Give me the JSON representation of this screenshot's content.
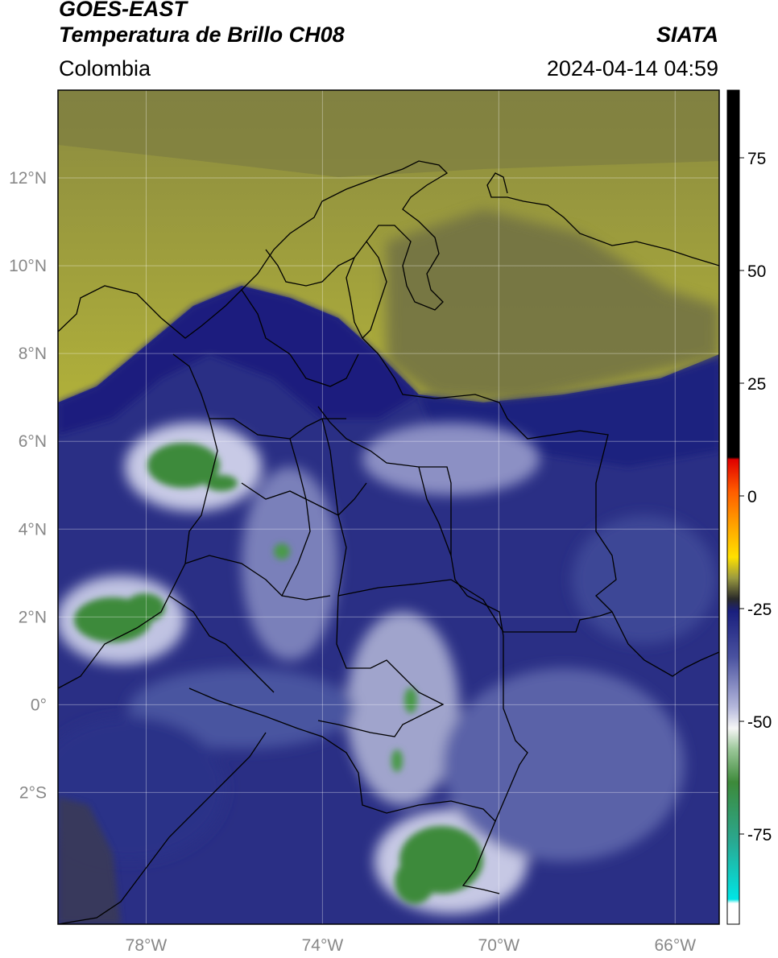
{
  "header": {
    "satellite": "GOES-EAST",
    "product": "Temperatura de Brillo CH08",
    "region": "Colombia",
    "agency": "SIATA",
    "datetime": "2024-04-14 04:59"
  },
  "map": {
    "lon_range": [
      -80,
      -65
    ],
    "lat_range": [
      -5,
      14
    ],
    "lat_ticks": [
      {
        "value": 12,
        "label": "12°N"
      },
      {
        "value": 10,
        "label": "10°N"
      },
      {
        "value": 8,
        "label": "8°N"
      },
      {
        "value": 6,
        "label": "6°N"
      },
      {
        "value": 4,
        "label": "4°N"
      },
      {
        "value": 2,
        "label": "2°N"
      },
      {
        "value": 0,
        "label": "0°"
      },
      {
        "value": -2,
        "label": "2°S"
      }
    ],
    "lon_ticks": [
      {
        "value": -78,
        "label": "78°W"
      },
      {
        "value": -74,
        "label": "74°W"
      },
      {
        "value": -70,
        "label": "70°W"
      },
      {
        "value": -66,
        "label": "66°W"
      }
    ],
    "grid": true,
    "colors": {
      "olive_dry": "#a6a630",
      "olive_dark": "#6c6c3c",
      "navy": "#1a1f7e",
      "mid_blue": "#3a4596",
      "lavender": "#9a9ec8",
      "white": "#f4f4f8",
      "green": "#3d8a3a",
      "teal": "#22c9c0"
    }
  },
  "colorbar": {
    "range": [
      -95,
      90
    ],
    "ticks": [
      {
        "value": 75,
        "label": "75"
      },
      {
        "value": 50,
        "label": "50"
      },
      {
        "value": 25,
        "label": "25"
      },
      {
        "value": 0,
        "label": "0"
      },
      {
        "value": -25,
        "label": "-25"
      },
      {
        "value": -50,
        "label": "-50"
      },
      {
        "value": -75,
        "label": "-75"
      }
    ]
  }
}
